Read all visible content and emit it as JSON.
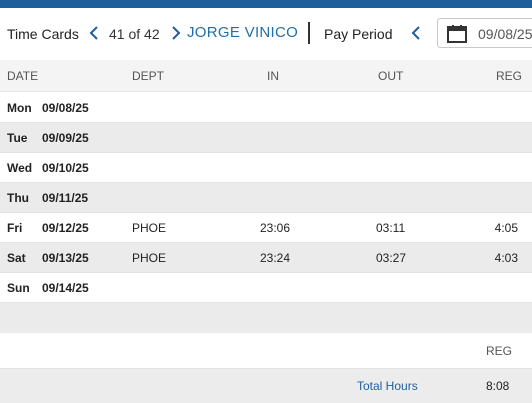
{
  "header": {
    "title": "Time Cards",
    "counter": "41 of 42",
    "employee": "JORGE VINICO",
    "pay_period_label": "Pay Period",
    "pay_period_date": "09/08/25"
  },
  "table": {
    "columns": [
      "DATE",
      "DEPT",
      "IN",
      "OUT",
      "REG"
    ],
    "rows": [
      {
        "day": "Mon",
        "date": "09/08/25",
        "dept": "",
        "in": "",
        "out": "",
        "reg": ""
      },
      {
        "day": "Tue",
        "date": "09/09/25",
        "dept": "",
        "in": "",
        "out": "",
        "reg": ""
      },
      {
        "day": "Wed",
        "date": "09/10/25",
        "dept": "",
        "in": "",
        "out": "",
        "reg": ""
      },
      {
        "day": "Thu",
        "date": "09/11/25",
        "dept": "",
        "in": "",
        "out": "",
        "reg": ""
      },
      {
        "day": "Fri",
        "date": "09/12/25",
        "dept": "PHOE",
        "in": "23:06",
        "out": "03:11",
        "reg": "4:05"
      },
      {
        "day": "Sat",
        "date": "09/13/25",
        "dept": "PHOE",
        "in": "23:24",
        "out": "03:27",
        "reg": "4:03"
      },
      {
        "day": "Sun",
        "date": "09/14/25",
        "dept": "",
        "in": "",
        "out": "",
        "reg": ""
      }
    ]
  },
  "summary": {
    "column": "REG",
    "total_label": "Total Hours",
    "total_value": "8:08"
  },
  "colors": {
    "accent": "#1f5f99",
    "link": "#1f6fa8",
    "alt_row": "#ebebeb"
  }
}
